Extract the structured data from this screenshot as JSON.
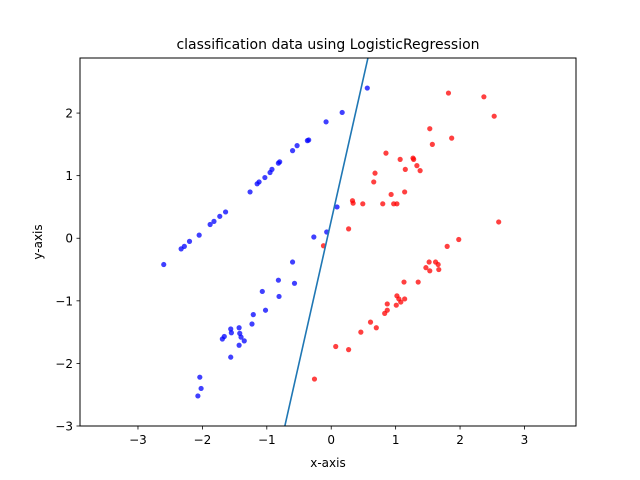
{
  "chart_data": {
    "type": "scatter",
    "title": "classification data using LogisticRegression",
    "xlabel": "x-axis",
    "ylabel": "y-axis",
    "xlim": [
      -3.9,
      3.8
    ],
    "ylim": [
      -3.0,
      2.88
    ],
    "xticks": [
      -3,
      -2,
      -1,
      0,
      1,
      2,
      3
    ],
    "yticks": [
      -3,
      -2,
      -1,
      0,
      1,
      2
    ],
    "grid": false,
    "legend": "none",
    "series": [
      {
        "color": "#0000ff",
        "points": [
          [
            -2.6,
            -0.42
          ],
          [
            -2.33,
            -0.17
          ],
          [
            -2.28,
            -0.13
          ],
          [
            -2.2,
            -0.05
          ],
          [
            -2.05,
            0.05
          ],
          [
            -1.88,
            0.22
          ],
          [
            -1.82,
            0.27
          ],
          [
            -1.73,
            0.35
          ],
          [
            -1.64,
            0.42
          ],
          [
            -1.26,
            0.74
          ],
          [
            -1.15,
            0.87
          ],
          [
            -1.12,
            0.9
          ],
          [
            -1.03,
            0.97
          ],
          [
            -0.95,
            1.05
          ],
          [
            -0.92,
            1.1
          ],
          [
            -0.82,
            1.2
          ],
          [
            -0.8,
            1.22
          ],
          [
            -0.6,
            1.4
          ],
          [
            -0.53,
            1.48
          ],
          [
            -0.37,
            1.56
          ],
          [
            -0.35,
            1.57
          ],
          [
            -0.08,
            1.86
          ],
          [
            0.17,
            2.01
          ],
          [
            0.56,
            2.4
          ],
          [
            -0.27,
            0.02
          ],
          [
            -0.07,
            0.1
          ],
          [
            0.09,
            0.5
          ],
          [
            -0.6,
            -0.38
          ],
          [
            -0.57,
            -0.72
          ],
          [
            -0.81,
            -0.93
          ],
          [
            -0.82,
            -0.67
          ],
          [
            -1.07,
            -0.85
          ],
          [
            -1.02,
            -1.15
          ],
          [
            -1.21,
            -1.22
          ],
          [
            -1.23,
            -1.37
          ],
          [
            -1.43,
            -1.43
          ],
          [
            -1.42,
            -1.52
          ],
          [
            -1.4,
            -1.58
          ],
          [
            -1.35,
            -1.64
          ],
          [
            -1.43,
            -1.71
          ],
          [
            -1.56,
            -1.45
          ],
          [
            -1.55,
            -1.51
          ],
          [
            -1.66,
            -1.57
          ],
          [
            -1.69,
            -1.61
          ],
          [
            -1.56,
            -1.9
          ],
          [
            -2.04,
            -2.22
          ],
          [
            -2.02,
            -2.4
          ],
          [
            -2.07,
            -2.52
          ]
        ]
      },
      {
        "color": "#ff0000",
        "points": [
          [
            -0.12,
            -0.12
          ],
          [
            0.27,
            0.15
          ],
          [
            0.33,
            0.6
          ],
          [
            0.34,
            0.56
          ],
          [
            0.49,
            0.55
          ],
          [
            0.66,
            0.9
          ],
          [
            0.68,
            1.04
          ],
          [
            0.8,
            0.55
          ],
          [
            0.85,
            1.36
          ],
          [
            0.93,
            0.7
          ],
          [
            0.97,
            0.55
          ],
          [
            1.02,
            0.55
          ],
          [
            1.07,
            1.26
          ],
          [
            1.15,
            1.1
          ],
          [
            1.14,
            0.74
          ],
          [
            1.27,
            1.28
          ],
          [
            1.28,
            1.26
          ],
          [
            1.33,
            1.16
          ],
          [
            1.38,
            1.08
          ],
          [
            1.53,
            1.75
          ],
          [
            1.57,
            1.5
          ],
          [
            1.82,
            2.32
          ],
          [
            1.87,
            1.6
          ],
          [
            2.37,
            2.26
          ],
          [
            2.53,
            1.95
          ],
          [
            2.6,
            0.26
          ],
          [
            1.8,
            -0.13
          ],
          [
            1.98,
            -0.02
          ],
          [
            1.62,
            -0.38
          ],
          [
            1.66,
            -0.42
          ],
          [
            1.47,
            -0.47
          ],
          [
            1.53,
            -0.52
          ],
          [
            1.67,
            -0.5
          ],
          [
            1.52,
            -0.38
          ],
          [
            1.35,
            -0.7
          ],
          [
            1.13,
            -0.7
          ],
          [
            1.02,
            -0.92
          ],
          [
            1.05,
            -0.97
          ],
          [
            1.08,
            -1.02
          ],
          [
            1.14,
            -0.97
          ],
          [
            1.01,
            -1.07
          ],
          [
            0.87,
            -1.05
          ],
          [
            0.87,
            -1.15
          ],
          [
            0.83,
            -1.2
          ],
          [
            0.7,
            -1.43
          ],
          [
            0.61,
            -1.34
          ],
          [
            0.46,
            -1.5
          ],
          [
            0.07,
            -1.73
          ],
          [
            0.27,
            -1.78
          ],
          [
            -0.26,
            -2.25
          ]
        ]
      }
    ],
    "decision_boundary": {
      "color": "#1f77b4",
      "points": [
        [
          -0.72,
          -3.0
        ],
        [
          0.57,
          2.88
        ]
      ]
    }
  }
}
